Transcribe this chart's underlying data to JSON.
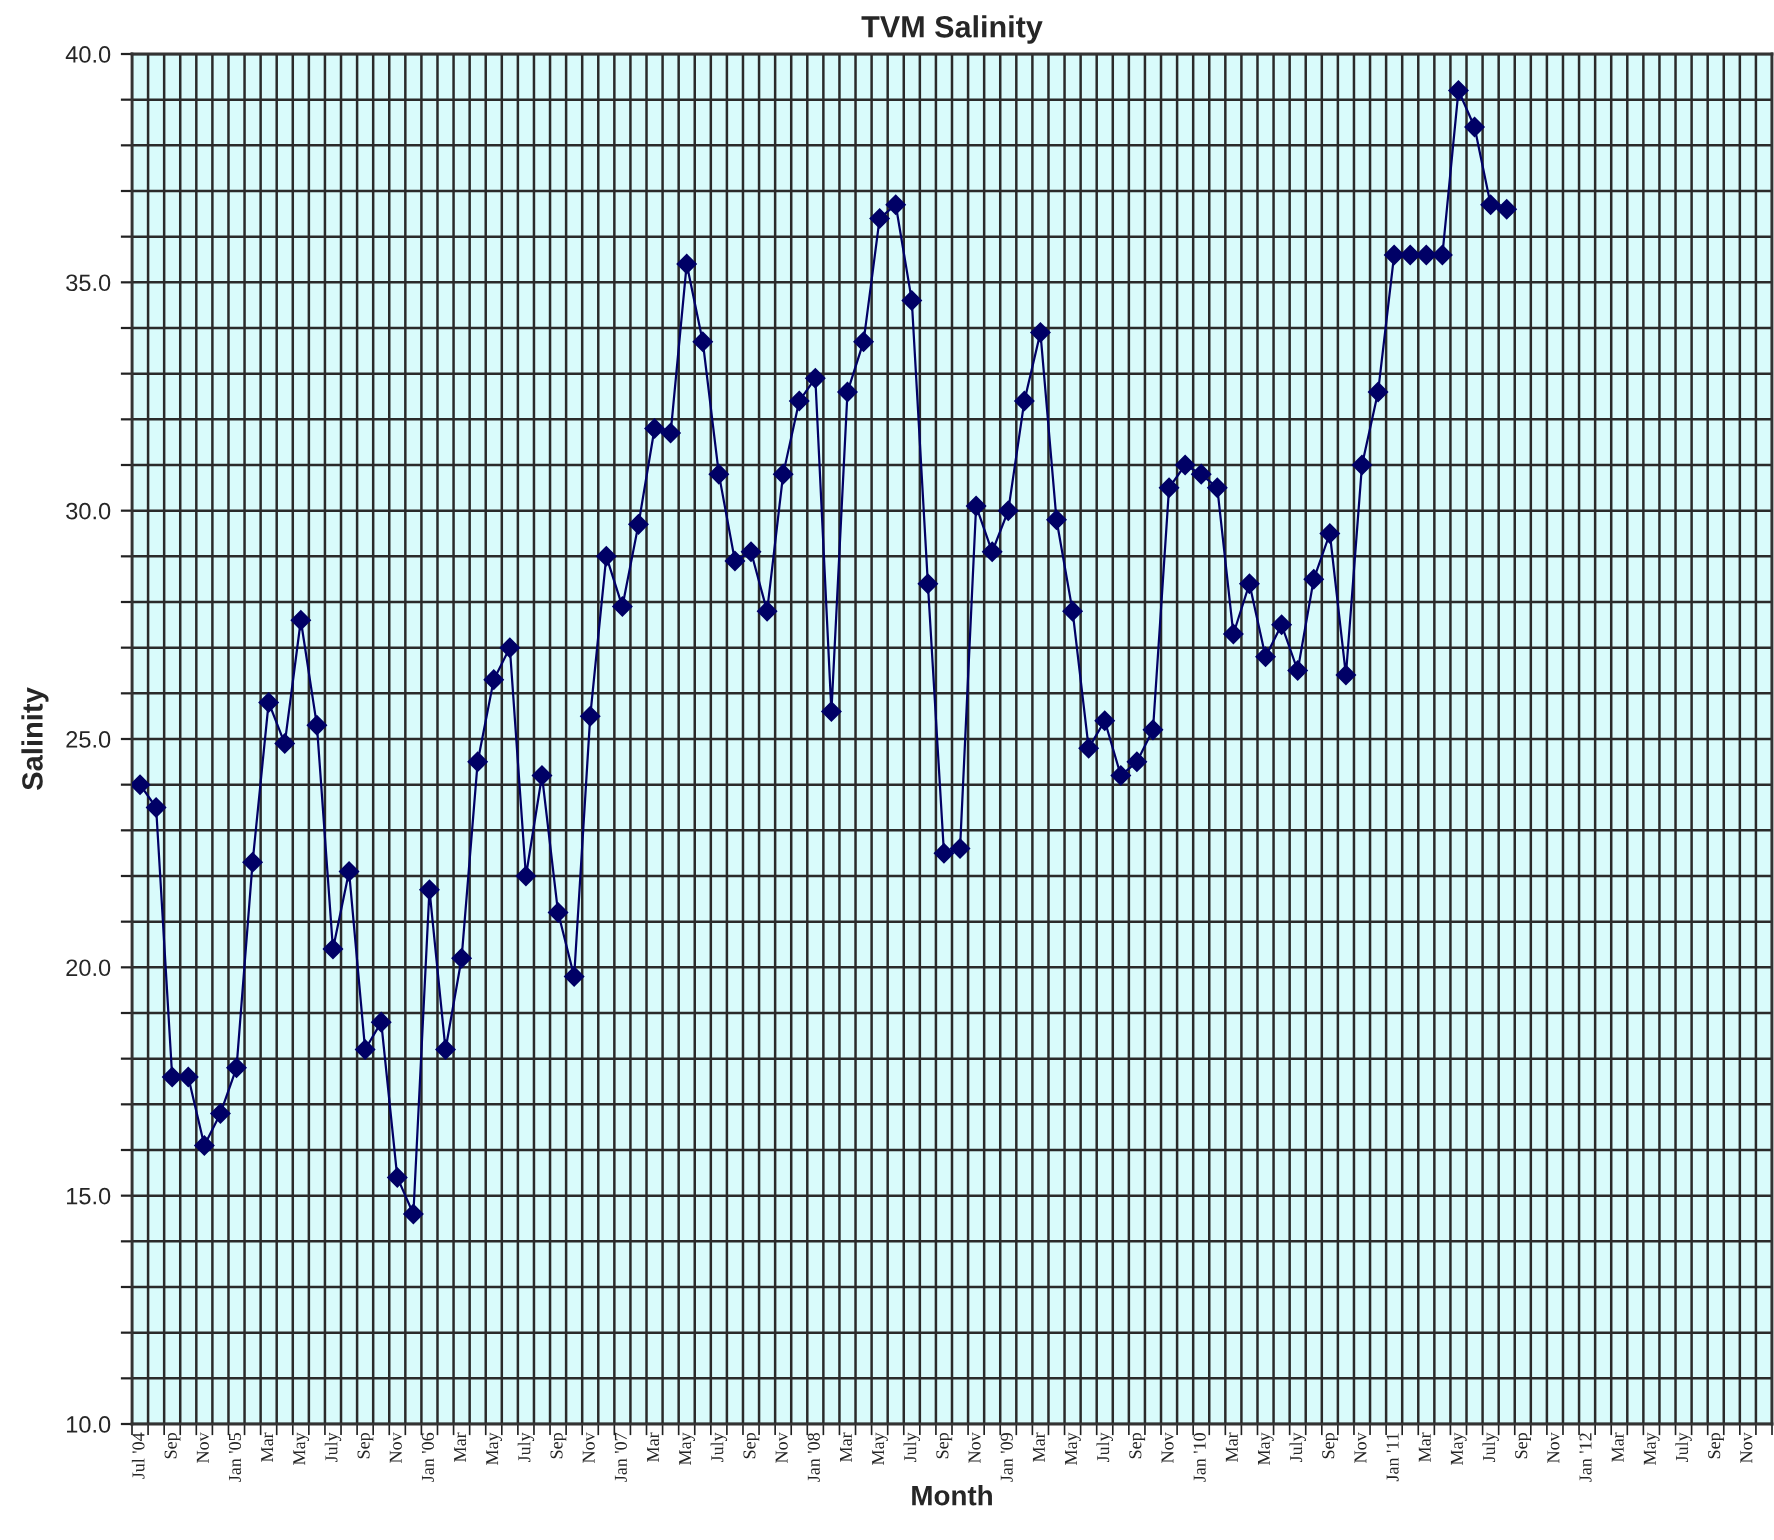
{
  "chart_data": {
    "type": "line",
    "title": "TVM Salinity",
    "xlabel": "Month",
    "ylabel": "Salinity",
    "categories": [
      "Jul '04",
      null,
      "Sep",
      null,
      "Nov",
      null,
      "Jan '05",
      null,
      "Mar",
      null,
      "May",
      null,
      "July",
      null,
      "Sep",
      null,
      "Nov",
      null,
      "Jan '06",
      null,
      "Mar",
      null,
      "May",
      null,
      "July",
      null,
      "Sep",
      null,
      "Nov",
      null,
      "Jan '07",
      null,
      "Mar",
      null,
      "May",
      null,
      "July",
      null,
      "Sep",
      null,
      "Nov",
      null,
      "Jan '08",
      null,
      "Mar",
      null,
      "May",
      null,
      "July",
      null,
      "Sep",
      null,
      "Nov",
      null,
      "Jan '09",
      null,
      "Mar",
      null,
      "May",
      null,
      "July",
      null,
      "Sep",
      null,
      "Nov",
      null,
      "Jan '10",
      null,
      "Mar",
      null,
      "May",
      null,
      "July",
      null,
      "Sep",
      null,
      "Nov",
      null,
      "Jan '11",
      null,
      "Mar",
      null,
      "May",
      null,
      "July",
      null,
      "Sep",
      null,
      "Nov",
      null,
      "Jan '12",
      null,
      "Mar",
      null,
      "May",
      null,
      "July",
      null,
      "Sep",
      null,
      "Nov",
      null
    ],
    "series": [
      {
        "color": "#000066",
        "values": [
          24.0,
          23.5,
          17.6,
          17.6,
          16.1,
          16.8,
          17.8,
          22.3,
          25.8,
          24.9,
          27.6,
          25.3,
          20.4,
          22.1,
          18.2,
          18.8,
          15.4,
          14.6,
          21.7,
          18.2,
          20.2,
          24.5,
          26.3,
          27.0,
          22.0,
          24.2,
          21.2,
          19.8,
          25.5,
          29.0,
          27.9,
          29.7,
          31.8,
          31.7,
          35.4,
          33.7,
          30.8,
          28.9,
          29.1,
          27.8,
          30.8,
          32.4,
          32.9,
          25.6,
          32.6,
          33.7,
          36.4,
          36.7,
          34.6,
          28.4,
          22.5,
          22.6,
          30.1,
          29.1,
          30.0,
          32.4,
          33.9,
          29.8,
          27.8,
          24.8,
          25.4,
          24.2,
          24.5,
          25.2,
          30.5,
          31.0,
          30.8,
          30.5,
          27.3,
          28.4,
          26.8,
          27.5,
          26.5,
          28.5,
          29.5,
          26.4,
          31.0,
          32.6,
          35.6,
          35.6,
          35.6,
          35.6,
          39.2,
          38.4,
          36.7,
          36.6,
          null,
          null,
          null,
          null,
          null,
          null,
          null,
          null,
          null,
          null,
          null,
          null,
          null,
          null,
          null,
          null
        ]
      }
    ],
    "ylim": [
      10,
      40
    ],
    "yticks": [
      {
        "value": 10,
        "label": "10.0"
      },
      {
        "value": 11,
        "label": null
      },
      {
        "value": 12,
        "label": null
      },
      {
        "value": 13,
        "label": null
      },
      {
        "value": 14,
        "label": null
      },
      {
        "value": 15,
        "label": "15.0"
      },
      {
        "value": 16,
        "label": null
      },
      {
        "value": 17,
        "label": null
      },
      {
        "value": 18,
        "label": null
      },
      {
        "value": 19,
        "label": null
      },
      {
        "value": 20,
        "label": "20.0"
      },
      {
        "value": 21,
        "label": null
      },
      {
        "value": 22,
        "label": null
      },
      {
        "value": 23,
        "label": null
      },
      {
        "value": 24,
        "label": null
      },
      {
        "value": 25,
        "label": "25.0"
      },
      {
        "value": 26,
        "label": null
      },
      {
        "value": 27,
        "label": null
      },
      {
        "value": 28,
        "label": null
      },
      {
        "value": 29,
        "label": null
      },
      {
        "value": 30,
        "label": "30.0"
      },
      {
        "value": 31,
        "label": null
      },
      {
        "value": 32,
        "label": null
      },
      {
        "value": 33,
        "label": null
      },
      {
        "value": 34,
        "label": null
      },
      {
        "value": 35,
        "label": "35.0"
      },
      {
        "value": 36,
        "label": null
      },
      {
        "value": 37,
        "label": null
      },
      {
        "value": 38,
        "label": null
      },
      {
        "value": 39,
        "label": null
      },
      {
        "value": 40,
        "label": "40.0"
      }
    ],
    "grid": true,
    "marker": "diamond",
    "line_style": "solid"
  }
}
